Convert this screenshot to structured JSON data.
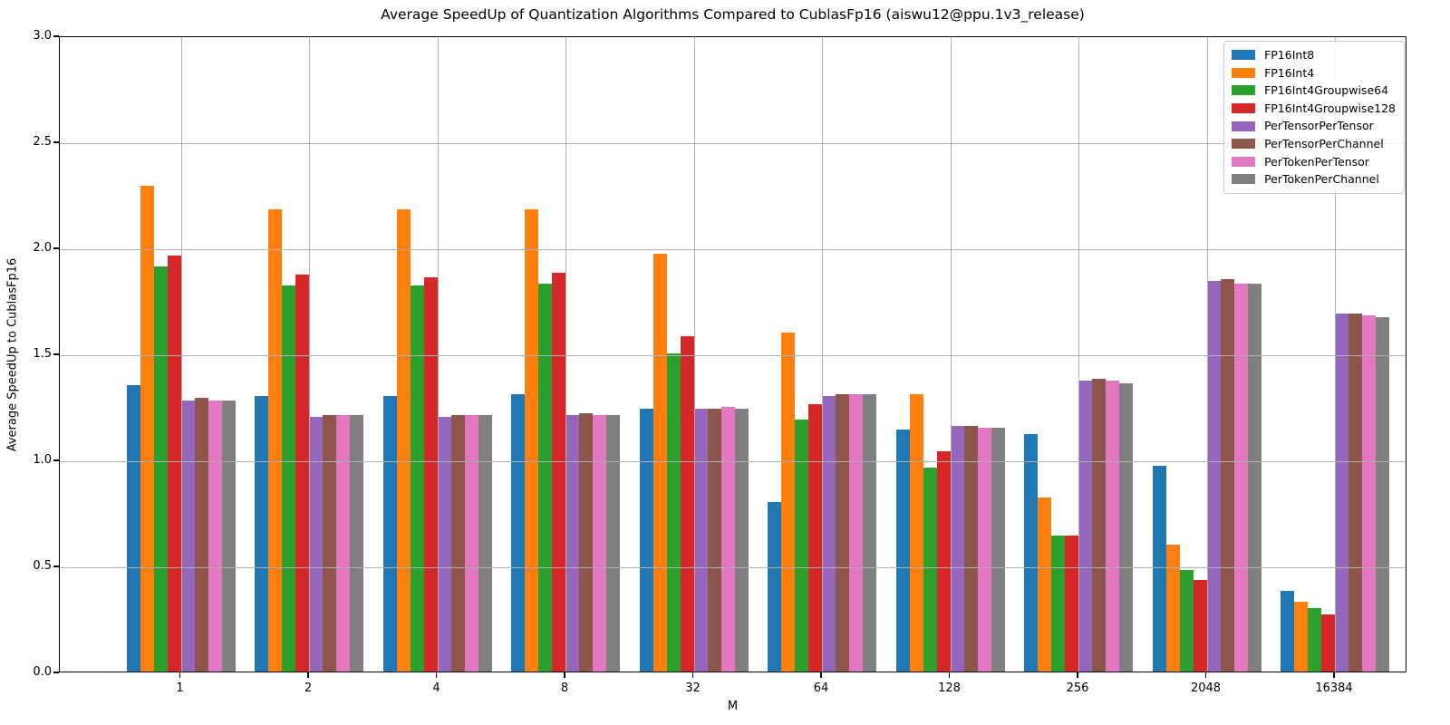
{
  "chart_data": {
    "type": "bar",
    "title": "Average SpeedUp of Quantization Algorithms Compared to CublasFp16 (aiswu12@ppu.1v3_release)",
    "xlabel": "M",
    "ylabel": "Average SpeedUp to CublasFp16",
    "ylim": [
      0.0,
      3.0
    ],
    "ytick_labels": [
      "0.0",
      "0.5",
      "1.0",
      "1.5",
      "2.0",
      "2.5",
      "3.0"
    ],
    "grid": true,
    "legend_position": "upper right",
    "categories": [
      "1",
      "2",
      "4",
      "8",
      "32",
      "64",
      "128",
      "256",
      "2048",
      "16384"
    ],
    "series": [
      {
        "name": "FP16Int8",
        "color": "#1f77b4",
        "values": [
          1.35,
          1.3,
          1.3,
          1.31,
          1.24,
          0.8,
          1.14,
          1.12,
          0.97,
          0.38
        ]
      },
      {
        "name": "FP16Int4",
        "color": "#ff7f0e",
        "values": [
          2.29,
          2.18,
          2.18,
          2.18,
          1.97,
          1.6,
          1.31,
          0.82,
          0.6,
          0.33
        ]
      },
      {
        "name": "FP16Int4Groupwise64",
        "color": "#2ca02c",
        "values": [
          1.91,
          1.82,
          1.82,
          1.83,
          1.5,
          1.19,
          0.96,
          0.64,
          0.48,
          0.3
        ]
      },
      {
        "name": "FP16Int4Groupwise128",
        "color": "#d62728",
        "values": [
          1.96,
          1.87,
          1.86,
          1.88,
          1.58,
          1.26,
          1.04,
          0.64,
          0.43,
          0.27
        ]
      },
      {
        "name": "PerTensorPerTensor",
        "color": "#9467bd",
        "values": [
          1.28,
          1.2,
          1.2,
          1.21,
          1.24,
          1.3,
          1.16,
          1.37,
          1.84,
          1.69
        ]
      },
      {
        "name": "PerTensorPerChannel",
        "color": "#8c564b",
        "values": [
          1.29,
          1.21,
          1.21,
          1.22,
          1.24,
          1.31,
          1.16,
          1.38,
          1.85,
          1.69
        ]
      },
      {
        "name": "PerTokenPerTensor",
        "color": "#e377c2",
        "values": [
          1.28,
          1.21,
          1.21,
          1.21,
          1.25,
          1.31,
          1.15,
          1.37,
          1.83,
          1.68
        ]
      },
      {
        "name": "PerTokenPerChannel",
        "color": "#7f7f7f",
        "values": [
          1.28,
          1.21,
          1.21,
          1.21,
          1.24,
          1.31,
          1.15,
          1.36,
          1.83,
          1.67
        ]
      }
    ]
  }
}
